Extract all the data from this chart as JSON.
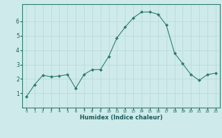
{
  "x": [
    0,
    1,
    2,
    3,
    4,
    5,
    6,
    7,
    8,
    9,
    10,
    11,
    12,
    13,
    14,
    15,
    16,
    17,
    18,
    19,
    20,
    21,
    22,
    23
  ],
  "y": [
    0.75,
    1.6,
    2.25,
    2.15,
    2.2,
    2.3,
    1.35,
    2.3,
    2.65,
    2.65,
    3.55,
    4.85,
    5.6,
    6.25,
    6.65,
    6.65,
    6.5,
    5.75,
    3.8,
    3.05,
    2.3,
    1.9,
    2.3,
    2.4
  ],
  "xlabel": "Humidex (Indice chaleur)",
  "xlim": [
    -0.5,
    23.5
  ],
  "ylim": [
    0,
    7.2
  ],
  "yticks": [
    1,
    2,
    3,
    4,
    5,
    6
  ],
  "xtick_labels": [
    "0",
    "1",
    "2",
    "3",
    "4",
    "5",
    "6",
    "7",
    "8",
    "9",
    "10",
    "11",
    "12",
    "13",
    "14",
    "15",
    "16",
    "17",
    "18",
    "19",
    "20",
    "21",
    "22",
    "23"
  ],
  "line_color": "#2d7d6e",
  "marker_color": "#2d7d6e",
  "bg_color": "#ceeaea",
  "grid_color": "#b8d8d8",
  "axis_color": "#2d7d6e",
  "label_color": "#1a5a5a",
  "tick_label_color": "#1a5a5a"
}
